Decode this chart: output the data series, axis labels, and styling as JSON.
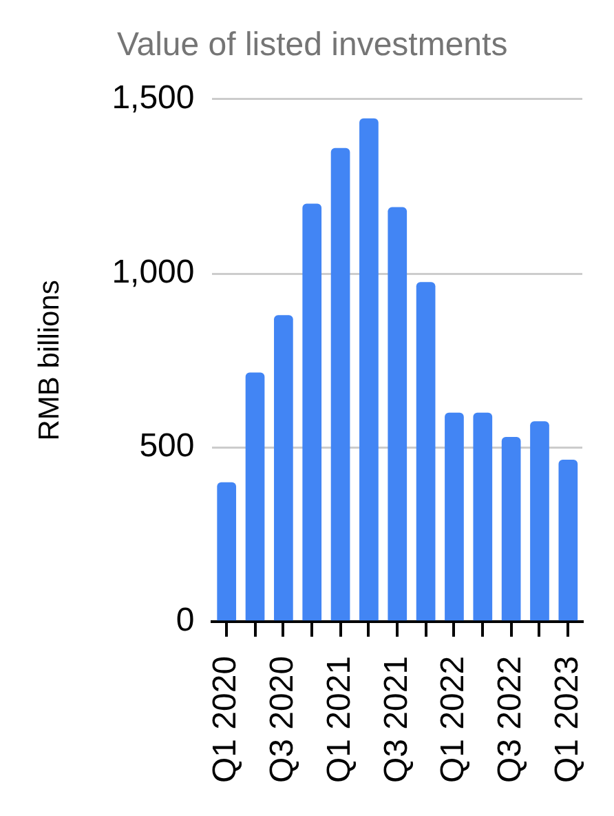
{
  "chart_data": {
    "type": "bar",
    "title": "Value of listed investments",
    "ylabel": "RMB billions",
    "categories": [
      "Q1 2020",
      null,
      "Q3 2020",
      null,
      "Q1 2021",
      null,
      "Q3 2021",
      null,
      "Q1 2022",
      null,
      "Q3 2022",
      null,
      "Q1 2023"
    ],
    "values": [
      400,
      715,
      880,
      1200,
      1360,
      1445,
      1190,
      975,
      600,
      600,
      530,
      575,
      465
    ],
    "color": "#4285f4",
    "ylim": [
      0,
      1500
    ],
    "yticks": [
      0,
      500,
      {
        "value": 1000,
        "label": "1,000"
      },
      {
        "value": 1500,
        "label": "1,500"
      }
    ],
    "grid": "y"
  }
}
